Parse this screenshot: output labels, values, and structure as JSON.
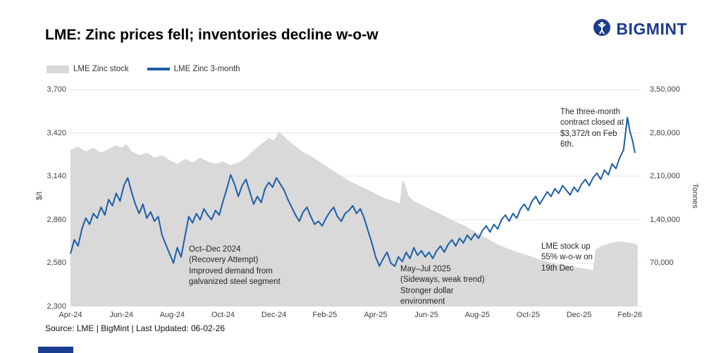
{
  "header": {
    "title": "LME: Zinc prices fell; inventories decline w-o-w",
    "brand_name": "BIGMINT",
    "brand_color": "#1c3c8c"
  },
  "legend": {
    "items": [
      {
        "label": "LME Zinc stock",
        "color": "#d9d9d9",
        "type": "area"
      },
      {
        "label": "LME Zinc 3-month",
        "color": "#1c5ea9",
        "type": "line"
      }
    ]
  },
  "source_note": "Source: LME | BigMint | Last Updated: 06-02-26",
  "chart_data": {
    "type": "line",
    "subtype": "dual-axis area + line combo",
    "title": "LME: Zinc prices fell; inventories decline w-o-w",
    "grid": "horizontal",
    "legend_position": "top-left",
    "x_range": [
      0,
      22.45
    ],
    "x_tick_positions": [
      0,
      2,
      4,
      6,
      8,
      10,
      12,
      14,
      16,
      18,
      20,
      22
    ],
    "x_tick_labels": [
      "Apr-24",
      "Jun-24",
      "Aug-24",
      "Oct-24",
      "Dec-24",
      "Feb-25",
      "Apr-25",
      "Jun-25",
      "Aug-25",
      "Oct-25",
      "Dec-25",
      "Feb-26"
    ],
    "left_axis": {
      "title": "$/t",
      "min": 2300,
      "max": 3700,
      "tick_labels": [
        "3,700",
        "3,420",
        "3,140",
        "2,860",
        "2,580",
        "2,300"
      ]
    },
    "right_axis": {
      "title": "Tonnes",
      "min": 0,
      "max": 350000,
      "tick_labels": [
        "3,50,000",
        "2,80,000",
        "2,10,000",
        "1,40,000",
        "70,000"
      ]
    },
    "annotations": {
      "recovery": "Oct–Dec 2024\n(Recovery Attempt)\nImproved demand from\ngalvanized steel segment",
      "sideways": "May–Jul 2025\n(Sideways, weak trend)\nStronger dollar\nenvironment",
      "stock_up": "LME stock up\n55% w-o-w on\n19th Dec",
      "contract": "The three-month\ncontract closed at\n$3,372/t on Feb\n6th."
    },
    "series": [
      {
        "name": "LME Zinc stock",
        "type": "area",
        "axis": "right",
        "color": "#d9d9d9",
        "points": [
          [
            0,
            253000
          ],
          [
            0.3,
            258000
          ],
          [
            0.6,
            250000
          ],
          [
            0.9,
            256000
          ],
          [
            1.2,
            248000
          ],
          [
            1.5,
            254000
          ],
          [
            1.8,
            260000
          ],
          [
            2,
            256000
          ],
          [
            2.2,
            262000
          ],
          [
            2.4,
            250000
          ],
          [
            2.7,
            244000
          ],
          [
            3,
            248000
          ],
          [
            3.3,
            240000
          ],
          [
            3.6,
            244000
          ],
          [
            3.9,
            236000
          ],
          [
            4.2,
            230000
          ],
          [
            4.5,
            238000
          ],
          [
            4.8,
            232000
          ],
          [
            5.1,
            240000
          ],
          [
            5.4,
            234000
          ],
          [
            5.7,
            230000
          ],
          [
            6,
            234000
          ],
          [
            6.3,
            228000
          ],
          [
            6.6,
            232000
          ],
          [
            6.9,
            240000
          ],
          [
            7.2,
            252000
          ],
          [
            7.5,
            262000
          ],
          [
            7.8,
            272000
          ],
          [
            8,
            268000
          ],
          [
            8.2,
            282000
          ],
          [
            8.35,
            276000
          ],
          [
            8.5,
            270000
          ],
          [
            8.8,
            260000
          ],
          [
            9.1,
            250000
          ],
          [
            9.4,
            244000
          ],
          [
            9.7,
            236000
          ],
          [
            10,
            228000
          ],
          [
            10.3,
            220000
          ],
          [
            10.6,
            212000
          ],
          [
            10.9,
            204000
          ],
          [
            11.2,
            198000
          ],
          [
            11.5,
            192000
          ],
          [
            11.8,
            186000
          ],
          [
            12.1,
            180000
          ],
          [
            12.4,
            174000
          ],
          [
            12.7,
            170000
          ],
          [
            12.95,
            166000
          ],
          [
            13.05,
            204000
          ],
          [
            13.15,
            198000
          ],
          [
            13.3,
            178000
          ],
          [
            13.5,
            170000
          ],
          [
            13.8,
            164000
          ],
          [
            14.1,
            158000
          ],
          [
            14.4,
            152000
          ],
          [
            14.7,
            146000
          ],
          [
            15,
            140000
          ],
          [
            15.3,
            134000
          ],
          [
            15.6,
            128000
          ],
          [
            15.9,
            121000
          ],
          [
            16.2,
            114000
          ],
          [
            16.5,
            107000
          ],
          [
            16.8,
            100000
          ],
          [
            17.1,
            95000
          ],
          [
            17.4,
            90000
          ],
          [
            17.7,
            86000
          ],
          [
            18,
            82000
          ],
          [
            18.3,
            78000
          ],
          [
            18.6,
            74000
          ],
          [
            18.9,
            71000
          ],
          [
            19.2,
            68000
          ],
          [
            19.5,
            66000
          ],
          [
            19.8,
            64000
          ],
          [
            20.1,
            62000
          ],
          [
            20.4,
            60000
          ],
          [
            20.55,
            59000
          ],
          [
            20.65,
            92000
          ],
          [
            20.9,
            98000
          ],
          [
            21.2,
            102000
          ],
          [
            21.5,
            105000
          ],
          [
            21.8,
            104000
          ],
          [
            22.1,
            102000
          ],
          [
            22.3,
            100000
          ]
        ]
      },
      {
        "name": "LME Zinc 3-month",
        "type": "line",
        "axis": "left",
        "color": "#1c5ea9",
        "stroke_width": 2,
        "points": [
          [
            0,
            2640
          ],
          [
            0.15,
            2730
          ],
          [
            0.3,
            2690
          ],
          [
            0.45,
            2800
          ],
          [
            0.6,
            2870
          ],
          [
            0.75,
            2830
          ],
          [
            0.9,
            2900
          ],
          [
            1.05,
            2870
          ],
          [
            1.2,
            2940
          ],
          [
            1.35,
            2890
          ],
          [
            1.5,
            2990
          ],
          [
            1.65,
            2950
          ],
          [
            1.8,
            3030
          ],
          [
            1.95,
            2980
          ],
          [
            2.1,
            3080
          ],
          [
            2.25,
            3130
          ],
          [
            2.4,
            3040
          ],
          [
            2.55,
            2960
          ],
          [
            2.7,
            2900
          ],
          [
            2.85,
            2960
          ],
          [
            3,
            2870
          ],
          [
            3.15,
            2910
          ],
          [
            3.3,
            2850
          ],
          [
            3.45,
            2880
          ],
          [
            3.6,
            2760
          ],
          [
            3.75,
            2700
          ],
          [
            3.9,
            2640
          ],
          [
            4.05,
            2580
          ],
          [
            4.2,
            2680
          ],
          [
            4.35,
            2620
          ],
          [
            4.5,
            2750
          ],
          [
            4.65,
            2880
          ],
          [
            4.8,
            2840
          ],
          [
            4.95,
            2900
          ],
          [
            5.1,
            2860
          ],
          [
            5.25,
            2930
          ],
          [
            5.4,
            2890
          ],
          [
            5.55,
            2860
          ],
          [
            5.7,
            2920
          ],
          [
            5.85,
            2890
          ],
          [
            6,
            2980
          ],
          [
            6.15,
            3060
          ],
          [
            6.3,
            3150
          ],
          [
            6.45,
            3090
          ],
          [
            6.6,
            3010
          ],
          [
            6.75,
            3080
          ],
          [
            6.9,
            3120
          ],
          [
            7.05,
            3040
          ],
          [
            7.2,
            2960
          ],
          [
            7.35,
            3010
          ],
          [
            7.5,
            2970
          ],
          [
            7.65,
            3060
          ],
          [
            7.8,
            3100
          ],
          [
            7.95,
            3070
          ],
          [
            8.1,
            3130
          ],
          [
            8.25,
            3090
          ],
          [
            8.4,
            3050
          ],
          [
            8.55,
            2990
          ],
          [
            8.7,
            2940
          ],
          [
            8.85,
            2890
          ],
          [
            9,
            2850
          ],
          [
            9.15,
            2910
          ],
          [
            9.3,
            2940
          ],
          [
            9.45,
            2880
          ],
          [
            9.6,
            2830
          ],
          [
            9.75,
            2850
          ],
          [
            9.9,
            2820
          ],
          [
            10.05,
            2870
          ],
          [
            10.2,
            2910
          ],
          [
            10.35,
            2940
          ],
          [
            10.5,
            2880
          ],
          [
            10.65,
            2850
          ],
          [
            10.8,
            2900
          ],
          [
            10.95,
            2920
          ],
          [
            11.1,
            2950
          ],
          [
            11.25,
            2900
          ],
          [
            11.4,
            2930
          ],
          [
            11.55,
            2870
          ],
          [
            11.7,
            2790
          ],
          [
            11.85,
            2710
          ],
          [
            12,
            2620
          ],
          [
            12.15,
            2560
          ],
          [
            12.3,
            2610
          ],
          [
            12.45,
            2650
          ],
          [
            12.6,
            2580
          ],
          [
            12.75,
            2560
          ],
          [
            12.9,
            2620
          ],
          [
            13.05,
            2590
          ],
          [
            13.2,
            2650
          ],
          [
            13.35,
            2610
          ],
          [
            13.5,
            2680
          ],
          [
            13.65,
            2630
          ],
          [
            13.8,
            2660
          ],
          [
            13.95,
            2620
          ],
          [
            14.1,
            2650
          ],
          [
            14.25,
            2610
          ],
          [
            14.4,
            2660
          ],
          [
            14.55,
            2690
          ],
          [
            14.7,
            2650
          ],
          [
            14.85,
            2700
          ],
          [
            15,
            2730
          ],
          [
            15.15,
            2690
          ],
          [
            15.3,
            2740
          ],
          [
            15.45,
            2710
          ],
          [
            15.6,
            2760
          ],
          [
            15.75,
            2730
          ],
          [
            15.9,
            2770
          ],
          [
            16.05,
            2740
          ],
          [
            16.2,
            2790
          ],
          [
            16.35,
            2820
          ],
          [
            16.5,
            2780
          ],
          [
            16.65,
            2830
          ],
          [
            16.8,
            2800
          ],
          [
            16.95,
            2860
          ],
          [
            17.1,
            2890
          ],
          [
            17.25,
            2850
          ],
          [
            17.4,
            2900
          ],
          [
            17.55,
            2870
          ],
          [
            17.7,
            2930
          ],
          [
            17.85,
            2960
          ],
          [
            18,
            2920
          ],
          [
            18.15,
            2980
          ],
          [
            18.3,
            3010
          ],
          [
            18.45,
            2960
          ],
          [
            18.6,
            3000
          ],
          [
            18.75,
            3040
          ],
          [
            18.9,
            3010
          ],
          [
            19.05,
            3060
          ],
          [
            19.2,
            3030
          ],
          [
            19.35,
            3080
          ],
          [
            19.5,
            3050
          ],
          [
            19.65,
            3020
          ],
          [
            19.8,
            3070
          ],
          [
            19.95,
            3040
          ],
          [
            20.1,
            3090
          ],
          [
            20.25,
            3120
          ],
          [
            20.4,
            3080
          ],
          [
            20.55,
            3130
          ],
          [
            20.7,
            3160
          ],
          [
            20.85,
            3120
          ],
          [
            21,
            3180
          ],
          [
            21.15,
            3150
          ],
          [
            21.3,
            3220
          ],
          [
            21.45,
            3190
          ],
          [
            21.6,
            3260
          ],
          [
            21.75,
            3310
          ],
          [
            21.9,
            3520
          ],
          [
            22,
            3430
          ],
          [
            22.1,
            3372
          ],
          [
            22.2,
            3290
          ]
        ]
      }
    ]
  }
}
